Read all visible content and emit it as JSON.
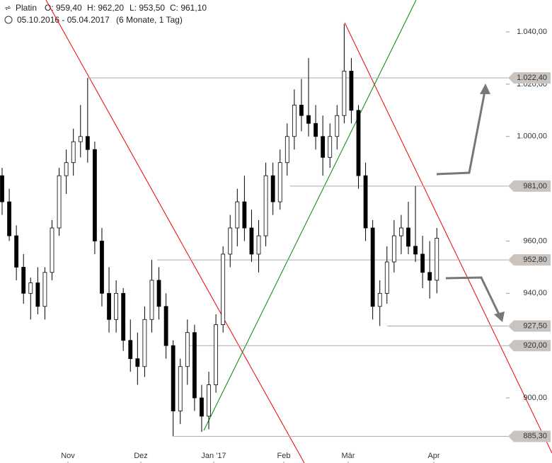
{
  "chart_data": {
    "type": "candlestick",
    "title": "Platin",
    "ohlc_labels": [
      "O: 959,40",
      "H: 962,20",
      "L: 953,50",
      "C: 961,10"
    ],
    "date_range": "05.10.2016 - 05.04.2017",
    "period": "(6 Monate, 1 Tag)",
    "months": [
      "Nov",
      "Dez",
      "Jan '17",
      "Feb",
      "Mär",
      "Apr"
    ],
    "ylim": [
      875.1,
      1052.2
    ],
    "yticks": [
      {
        "value": 1040,
        "label": "1.040,00"
      },
      {
        "value": 1020,
        "label": "1.020,00"
      },
      {
        "value": 1000,
        "label": "1.000,00"
      },
      {
        "value": 960,
        "label": "960,00"
      },
      {
        "value": 940,
        "label": "940,00"
      },
      {
        "value": 900,
        "label": "900,00"
      }
    ],
    "levels": [
      {
        "value": 1022.4,
        "label": "1.022,40"
      },
      {
        "value": 981,
        "label": "981,00"
      },
      {
        "value": 952.8,
        "label": "952,80"
      },
      {
        "value": 927.5,
        "label": "927,50"
      },
      {
        "value": 920,
        "label": "920,00"
      },
      {
        "value": 885.3,
        "label": "885,30"
      }
    ],
    "candles": [
      [
        985,
        988,
        970,
        975
      ],
      [
        975,
        980,
        960,
        962
      ],
      [
        962,
        966,
        945,
        950
      ],
      [
        950,
        955,
        936,
        940
      ],
      [
        940,
        946,
        930,
        944
      ],
      [
        944,
        950,
        932,
        935
      ],
      [
        935,
        950,
        930,
        948
      ],
      [
        948,
        968,
        945,
        965
      ],
      [
        965,
        988,
        962,
        985
      ],
      [
        985,
        995,
        978,
        990
      ],
      [
        990,
        1003,
        985,
        998
      ],
      [
        998,
        1012,
        992,
        1000
      ],
      [
        1000,
        1022.4,
        990,
        995
      ],
      [
        995,
        998,
        955,
        960
      ],
      [
        960,
        965,
        935,
        940
      ],
      [
        940,
        950,
        925,
        930
      ],
      [
        930,
        945,
        925,
        940
      ],
      [
        940,
        942,
        918,
        922
      ],
      [
        922,
        930,
        910,
        915
      ],
      [
        915,
        925,
        905,
        912
      ],
      [
        912,
        935,
        908,
        930
      ],
      [
        930,
        952.8,
        925,
        945
      ],
      [
        945,
        950,
        930,
        935
      ],
      [
        935,
        940,
        915,
        920
      ],
      [
        920,
        922,
        885.3,
        895
      ],
      [
        895,
        915,
        890,
        912
      ],
      [
        912,
        930,
        905,
        925
      ],
      [
        925,
        928,
        895,
        900
      ],
      [
        900,
        905,
        887,
        893
      ],
      [
        893,
        910,
        888,
        905
      ],
      [
        905,
        932,
        902,
        928
      ],
      [
        928,
        958,
        925,
        955
      ],
      [
        955,
        970,
        950,
        965
      ],
      [
        965,
        980,
        958,
        975
      ],
      [
        975,
        985,
        960,
        965
      ],
      [
        965,
        972,
        952,
        955
      ],
      [
        955,
        968,
        948,
        962
      ],
      [
        962,
        990,
        958,
        985
      ],
      [
        985,
        990,
        970,
        975
      ],
      [
        975,
        995,
        972,
        990
      ],
      [
        990,
        1005,
        985,
        1000
      ],
      [
        1000,
        1018,
        995,
        1012
      ],
      [
        1012,
        1022,
        1002,
        1008
      ],
      [
        1008,
        1030,
        1000,
        1005
      ],
      [
        1005,
        1012,
        995,
        1000
      ],
      [
        1000,
        1008,
        985,
        992
      ],
      [
        992,
        1005,
        988,
        1000
      ],
      [
        1000,
        1012,
        995,
        1008
      ],
      [
        1008,
        1043,
        1005,
        1025
      ],
      [
        1025,
        1030,
        1005,
        1010
      ],
      [
        1010,
        1012,
        980,
        985
      ],
      [
        985,
        990,
        960,
        965
      ],
      [
        965,
        968,
        930,
        935
      ],
      [
        935,
        945,
        927.5,
        940
      ],
      [
        940,
        958,
        936,
        952
      ],
      [
        952,
        968,
        948,
        962
      ],
      [
        962,
        970,
        955,
        965
      ],
      [
        965,
        975,
        955,
        958
      ],
      [
        958,
        981,
        952,
        955
      ],
      [
        955,
        962,
        942,
        948
      ],
      [
        948,
        960,
        938,
        945
      ],
      [
        945,
        965,
        940,
        961.1
      ]
    ]
  }
}
